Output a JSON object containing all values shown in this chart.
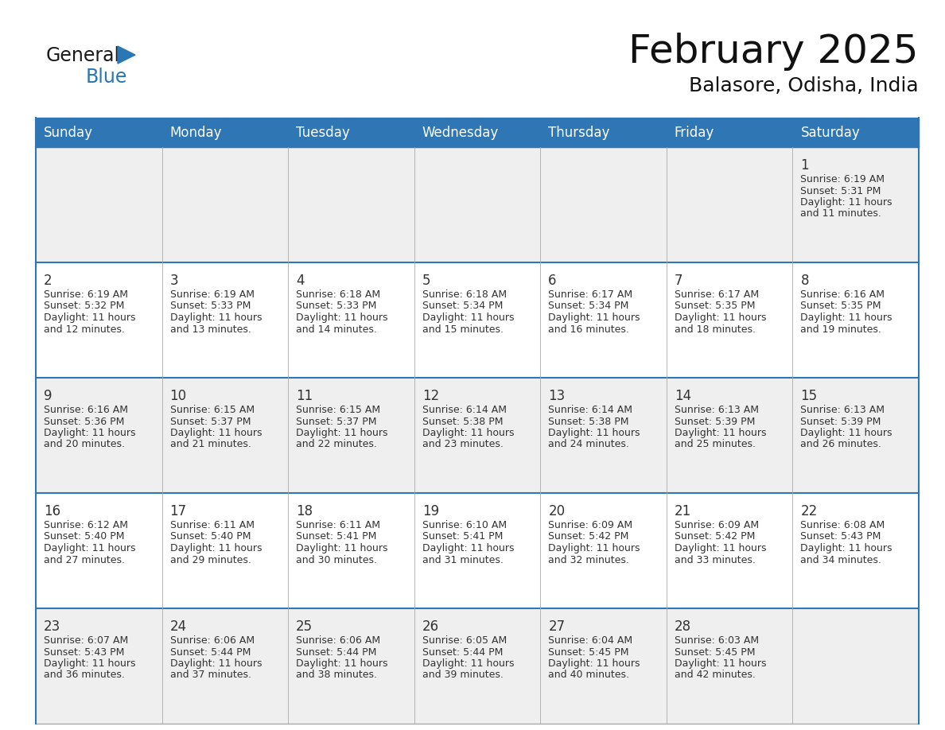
{
  "title": "February 2025",
  "subtitle": "Balasore, Odisha, India",
  "header_color": "#2E76B4",
  "header_text_color": "#FFFFFF",
  "day_names": [
    "Sunday",
    "Monday",
    "Tuesday",
    "Wednesday",
    "Thursday",
    "Friday",
    "Saturday"
  ],
  "days": [
    {
      "day": 1,
      "col": 6,
      "row": 0,
      "sunrise": "6:19 AM",
      "sunset": "5:31 PM",
      "daylight": "11 hours and 11 minutes."
    },
    {
      "day": 2,
      "col": 0,
      "row": 1,
      "sunrise": "6:19 AM",
      "sunset": "5:32 PM",
      "daylight": "11 hours and 12 minutes."
    },
    {
      "day": 3,
      "col": 1,
      "row": 1,
      "sunrise": "6:19 AM",
      "sunset": "5:33 PM",
      "daylight": "11 hours and 13 minutes."
    },
    {
      "day": 4,
      "col": 2,
      "row": 1,
      "sunrise": "6:18 AM",
      "sunset": "5:33 PM",
      "daylight": "11 hours and 14 minutes."
    },
    {
      "day": 5,
      "col": 3,
      "row": 1,
      "sunrise": "6:18 AM",
      "sunset": "5:34 PM",
      "daylight": "11 hours and 15 minutes."
    },
    {
      "day": 6,
      "col": 4,
      "row": 1,
      "sunrise": "6:17 AM",
      "sunset": "5:34 PM",
      "daylight": "11 hours and 16 minutes."
    },
    {
      "day": 7,
      "col": 5,
      "row": 1,
      "sunrise": "6:17 AM",
      "sunset": "5:35 PM",
      "daylight": "11 hours and 18 minutes."
    },
    {
      "day": 8,
      "col": 6,
      "row": 1,
      "sunrise": "6:16 AM",
      "sunset": "5:35 PM",
      "daylight": "11 hours and 19 minutes."
    },
    {
      "day": 9,
      "col": 0,
      "row": 2,
      "sunrise": "6:16 AM",
      "sunset": "5:36 PM",
      "daylight": "11 hours and 20 minutes."
    },
    {
      "day": 10,
      "col": 1,
      "row": 2,
      "sunrise": "6:15 AM",
      "sunset": "5:37 PM",
      "daylight": "11 hours and 21 minutes."
    },
    {
      "day": 11,
      "col": 2,
      "row": 2,
      "sunrise": "6:15 AM",
      "sunset": "5:37 PM",
      "daylight": "11 hours and 22 minutes."
    },
    {
      "day": 12,
      "col": 3,
      "row": 2,
      "sunrise": "6:14 AM",
      "sunset": "5:38 PM",
      "daylight": "11 hours and 23 minutes."
    },
    {
      "day": 13,
      "col": 4,
      "row": 2,
      "sunrise": "6:14 AM",
      "sunset": "5:38 PM",
      "daylight": "11 hours and 24 minutes."
    },
    {
      "day": 14,
      "col": 5,
      "row": 2,
      "sunrise": "6:13 AM",
      "sunset": "5:39 PM",
      "daylight": "11 hours and 25 minutes."
    },
    {
      "day": 15,
      "col": 6,
      "row": 2,
      "sunrise": "6:13 AM",
      "sunset": "5:39 PM",
      "daylight": "11 hours and 26 minutes."
    },
    {
      "day": 16,
      "col": 0,
      "row": 3,
      "sunrise": "6:12 AM",
      "sunset": "5:40 PM",
      "daylight": "11 hours and 27 minutes."
    },
    {
      "day": 17,
      "col": 1,
      "row": 3,
      "sunrise": "6:11 AM",
      "sunset": "5:40 PM",
      "daylight": "11 hours and 29 minutes."
    },
    {
      "day": 18,
      "col": 2,
      "row": 3,
      "sunrise": "6:11 AM",
      "sunset": "5:41 PM",
      "daylight": "11 hours and 30 minutes."
    },
    {
      "day": 19,
      "col": 3,
      "row": 3,
      "sunrise": "6:10 AM",
      "sunset": "5:41 PM",
      "daylight": "11 hours and 31 minutes."
    },
    {
      "day": 20,
      "col": 4,
      "row": 3,
      "sunrise": "6:09 AM",
      "sunset": "5:42 PM",
      "daylight": "11 hours and 32 minutes."
    },
    {
      "day": 21,
      "col": 5,
      "row": 3,
      "sunrise": "6:09 AM",
      "sunset": "5:42 PM",
      "daylight": "11 hours and 33 minutes."
    },
    {
      "day": 22,
      "col": 6,
      "row": 3,
      "sunrise": "6:08 AM",
      "sunset": "5:43 PM",
      "daylight": "11 hours and 34 minutes."
    },
    {
      "day": 23,
      "col": 0,
      "row": 4,
      "sunrise": "6:07 AM",
      "sunset": "5:43 PM",
      "daylight": "11 hours and 36 minutes."
    },
    {
      "day": 24,
      "col": 1,
      "row": 4,
      "sunrise": "6:06 AM",
      "sunset": "5:44 PM",
      "daylight": "11 hours and 37 minutes."
    },
    {
      "day": 25,
      "col": 2,
      "row": 4,
      "sunrise": "6:06 AM",
      "sunset": "5:44 PM",
      "daylight": "11 hours and 38 minutes."
    },
    {
      "day": 26,
      "col": 3,
      "row": 4,
      "sunrise": "6:05 AM",
      "sunset": "5:44 PM",
      "daylight": "11 hours and 39 minutes."
    },
    {
      "day": 27,
      "col": 4,
      "row": 4,
      "sunrise": "6:04 AM",
      "sunset": "5:45 PM",
      "daylight": "11 hours and 40 minutes."
    },
    {
      "day": 28,
      "col": 5,
      "row": 4,
      "sunrise": "6:03 AM",
      "sunset": "5:45 PM",
      "daylight": "11 hours and 42 minutes."
    }
  ],
  "background_color": "#FFFFFF",
  "cell_bg_even": "#EFEFEF",
  "cell_bg_odd": "#FFFFFF",
  "border_color": "#AAAAAA",
  "day_num_color": "#333333",
  "info_text_color": "#333333",
  "header_row_color": "#2E76B4",
  "logo_general_color": "#1A1A1A",
  "logo_blue_color": "#2977B5",
  "title_fontsize": 36,
  "subtitle_fontsize": 18,
  "dayname_fontsize": 12,
  "daynum_fontsize": 12,
  "info_fontsize": 9.0
}
